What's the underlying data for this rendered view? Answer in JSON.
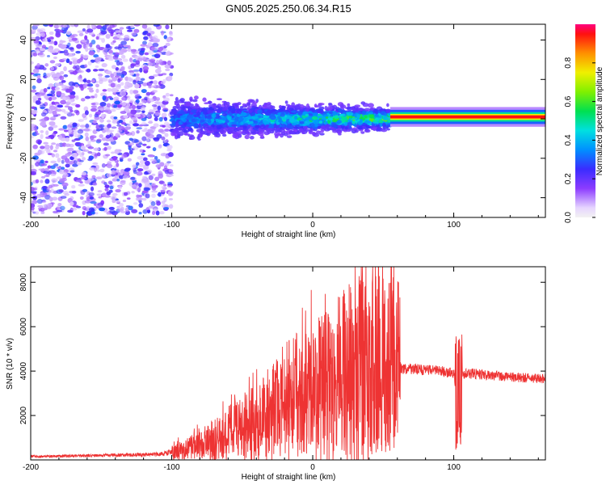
{
  "title": "GN05.2025.250.06.34.R15",
  "chart_data": [
    {
      "type": "heatmap",
      "xlabel": "Height of straight line (km)",
      "ylabel": "Frequency (Hz)",
      "xlim": [
        -200,
        165
      ],
      "ylim": [
        -50,
        48
      ],
      "xticks": [
        -200,
        -100,
        0,
        100
      ],
      "yticks": [
        -40,
        -20,
        0,
        20,
        40
      ],
      "colorbar": {
        "label": "Normalized spectral amplitude",
        "range": [
          0,
          1
        ],
        "ticks": [
          "0.0",
          "0.2",
          "0.4",
          "0.6",
          "0.8"
        ]
      },
      "segments": [
        {
          "x_range": [
            -200,
            -100
          ],
          "freq_spread_hz": 48,
          "peak_amplitude": 0.25
        },
        {
          "x_range": [
            -100,
            55
          ],
          "freq_spread_hz": 10,
          "peak_amplitude": 0.5
        },
        {
          "x_range": [
            55,
            165
          ],
          "freq_center_hz": 1,
          "freq_spread_hz": 2,
          "peak_amplitude": 0.95
        }
      ]
    },
    {
      "type": "line",
      "xlabel": "Height of straight line (km)",
      "ylabel": "SNR (10 * v/v)",
      "xlim": [
        -200,
        165
      ],
      "ylim": [
        0,
        8700
      ],
      "xticks": [
        -200,
        -100,
        0,
        100
      ],
      "yticks": [
        2000,
        4000,
        6000,
        8000
      ],
      "color": "#ee3333",
      "series": [
        {
          "name": "SNR",
          "x": [
            -200,
            -150,
            -110,
            -100,
            -90,
            -80,
            -70,
            -60,
            -50,
            -40,
            -30,
            -20,
            -15,
            -10,
            0,
            10,
            20,
            30,
            40,
            43,
            50,
            55,
            60,
            65,
            70,
            80,
            90,
            95,
            100,
            103,
            105,
            110,
            120,
            130,
            140,
            150,
            165
          ],
          "y": [
            150,
            200,
            250,
            350,
            500,
            700,
            950,
            1200,
            1500,
            1800,
            2100,
            2700,
            3000,
            2800,
            3200,
            3500,
            3900,
            4200,
            4500,
            5000,
            4400,
            4300,
            4200,
            4100,
            4100,
            4050,
            4000,
            3950,
            3900,
            2500,
            3800,
            3900,
            3850,
            3800,
            3750,
            3700,
            3650
          ]
        }
      ]
    }
  ]
}
